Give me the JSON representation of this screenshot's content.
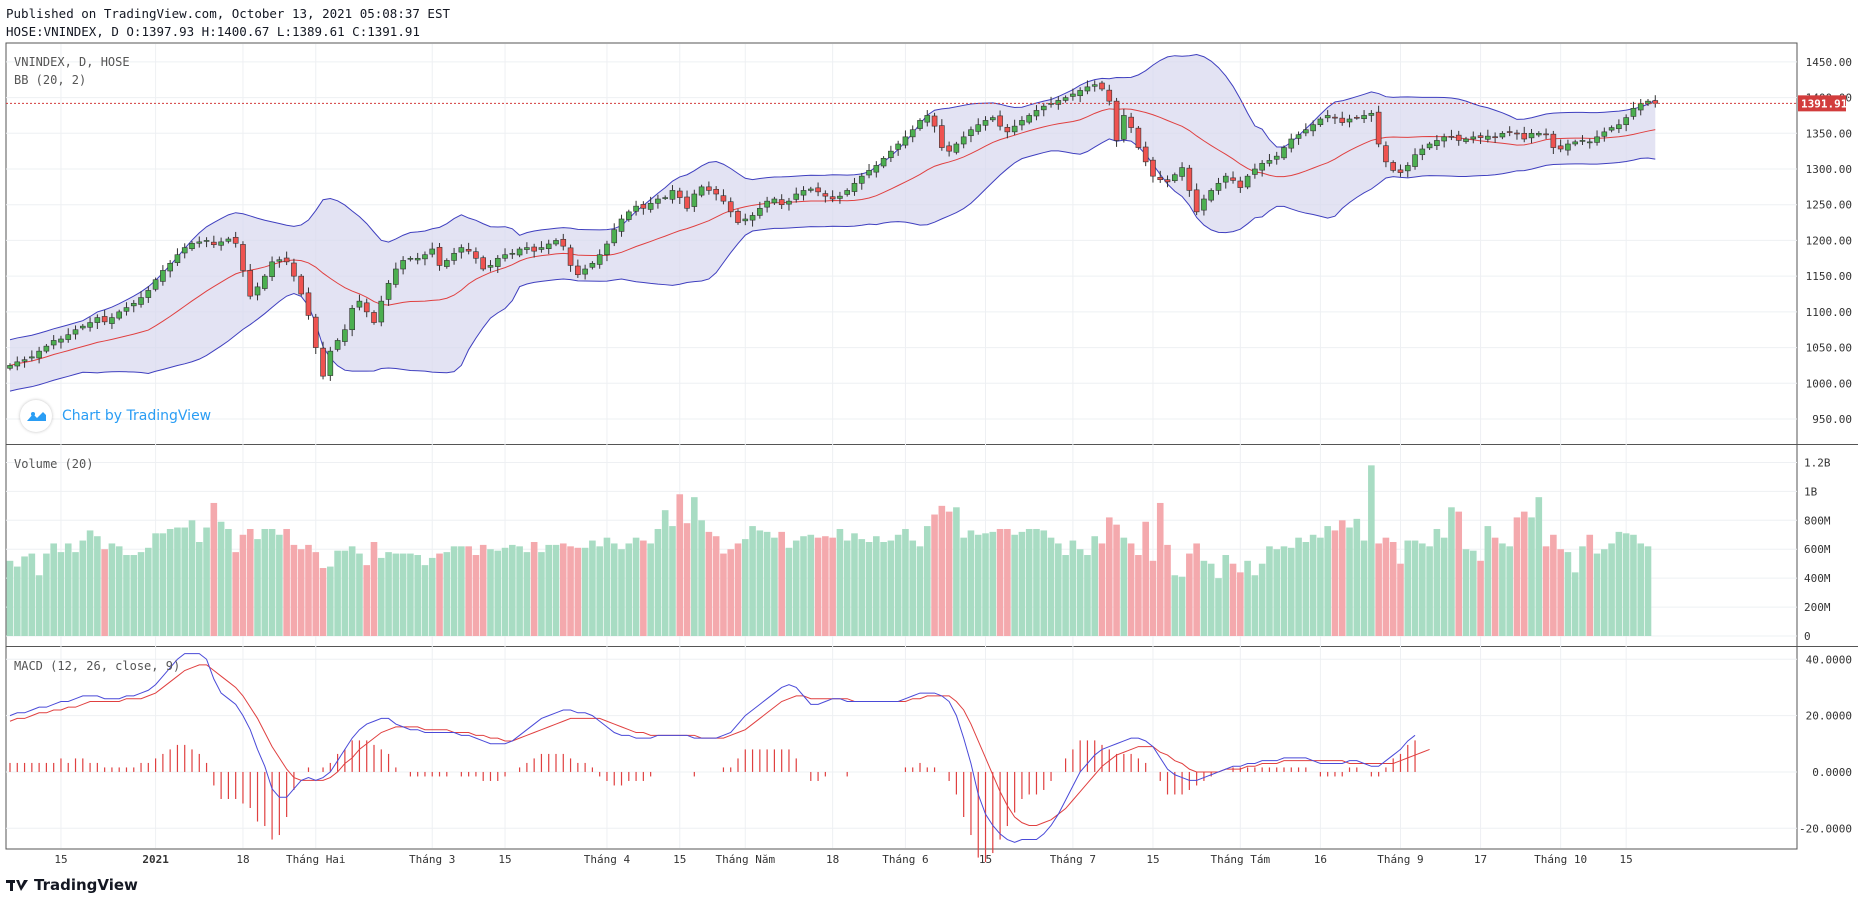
{
  "header": {
    "published": "Published on TradingView.com, October 13, 2021 05:08:37 EST",
    "ohlc": "HOSE:VNINDEX, D O:1397.93 H:1400.67 L:1389.61 C:1391.91"
  },
  "panes": {
    "price": {
      "title": "VNINDEX, D, HOSE",
      "indicator": "BB (20, 2)"
    },
    "volume": {
      "title": "Volume (20)"
    },
    "macd": {
      "title": "MACD (12, 26, close, 9)"
    }
  },
  "watermark": {
    "label": "Chart by TradingView"
  },
  "branding": {
    "label": "TradingView"
  },
  "colors": {
    "up": "#26a69a",
    "up_candle": "#4caf50",
    "down": "#ef5350",
    "bb_band": "#3f3fbf",
    "bb_fill": "#d7d7ee",
    "bb_basis": "#e04040",
    "macd_line": "#4a4ad8",
    "signal_line": "#e04040",
    "vol_up": "#a8dcc3",
    "vol_down": "#f4a9ad"
  },
  "chart_data": {
    "type": "candlestick",
    "last_price_label": "1391.91",
    "last_price": 1391.91,
    "price_axis": {
      "ticks": [
        "1450.00",
        "1400.00",
        "1350.00",
        "1300.00",
        "1250.00",
        "1200.00",
        "1150.00",
        "1100.00",
        "1050.00",
        "1000.00",
        "950.00"
      ],
      "ylim": [
        915,
        1475
      ]
    },
    "volume_axis": {
      "ticks": [
        "1.2B",
        "1B",
        "800M",
        "600M",
        "400M",
        "200M",
        "0"
      ],
      "ylim": [
        0,
        1.3
      ]
    },
    "macd_axis": {
      "ticks": [
        "40.0000",
        "20.0000",
        "0.0000",
        "-20.0000"
      ],
      "ylim": [
        -27,
        44
      ]
    },
    "x_axis": {
      "ticks": [
        {
          "label": "15",
          "idx": 7
        },
        {
          "label": "2021",
          "idx": 20
        },
        {
          "label": "18",
          "idx": 32
        },
        {
          "label": "Tháng Hai",
          "idx": 42
        },
        {
          "label": "Tháng 3",
          "idx": 58
        },
        {
          "label": "15",
          "idx": 68
        },
        {
          "label": "Tháng 4",
          "idx": 82
        },
        {
          "label": "15",
          "idx": 92
        },
        {
          "label": "Tháng Năm",
          "idx": 101
        },
        {
          "label": "18",
          "idx": 113
        },
        {
          "label": "Tháng 6",
          "idx": 123
        },
        {
          "label": "15",
          "idx": 134
        },
        {
          "label": "Tháng 7",
          "idx": 146
        },
        {
          "label": "15",
          "idx": 157
        },
        {
          "label": "Tháng Tám",
          "idx": 169
        },
        {
          "label": "16",
          "idx": 180
        },
        {
          "label": "Tháng 9",
          "idx": 191
        },
        {
          "label": "17",
          "idx": 202
        },
        {
          "label": "Tháng 10",
          "idx": 213
        },
        {
          "label": "15",
          "idx": 222
        }
      ]
    },
    "close": [
      1025,
      1030,
      1033,
      1037,
      1045,
      1052,
      1060,
      1062,
      1068,
      1075,
      1080,
      1085,
      1092,
      1086,
      1092,
      1100,
      1106,
      1112,
      1120,
      1130,
      1145,
      1158,
      1168,
      1180,
      1190,
      1196,
      1198,
      1200,
      1194,
      1198,
      1202,
      1196,
      1158,
      1122,
      1135,
      1150,
      1170,
      1173,
      1170,
      1150,
      1125,
      1095,
      1050,
      1010,
      1045,
      1060,
      1075,
      1105,
      1115,
      1100,
      1085,
      1115,
      1140,
      1160,
      1172,
      1175,
      1175,
      1180,
      1188,
      1165,
      1172,
      1182,
      1190,
      1185,
      1175,
      1160,
      1165,
      1175,
      1180,
      1182,
      1188,
      1190,
      1185,
      1190,
      1195,
      1200,
      1192,
      1165,
      1152,
      1160,
      1168,
      1180,
      1195,
      1215,
      1230,
      1240,
      1248,
      1245,
      1252,
      1258,
      1260,
      1270,
      1260,
      1245,
      1265,
      1275,
      1270,
      1265,
      1255,
      1240,
      1225,
      1230,
      1235,
      1245,
      1255,
      1258,
      1250,
      1255,
      1265,
      1270,
      1272,
      1268,
      1262,
      1258,
      1262,
      1270,
      1280,
      1290,
      1298,
      1305,
      1315,
      1325,
      1335,
      1345,
      1355,
      1368,
      1375,
      1360,
      1330,
      1325,
      1335,
      1345,
      1355,
      1362,
      1368,
      1372,
      1360,
      1352,
      1360,
      1368,
      1375,
      1382,
      1388,
      1392,
      1396,
      1400,
      1405,
      1410,
      1415,
      1418,
      1412,
      1395,
      1340,
      1375,
      1358,
      1330,
      1310,
      1290,
      1285,
      1282,
      1292,
      1302,
      1270,
      1240,
      1258,
      1270,
      1280,
      1290,
      1284,
      1274,
      1290,
      1300,
      1308,
      1312,
      1318,
      1330,
      1342,
      1348,
      1355,
      1362,
      1370,
      1375,
      1372,
      1365,
      1370,
      1372,
      1375,
      1378,
      1335,
      1310,
      1298,
      1295,
      1305,
      1320,
      1328,
      1335,
      1340,
      1345,
      1345,
      1340,
      1342,
      1345,
      1344,
      1346,
      1344,
      1350,
      1352,
      1350,
      1342,
      1350,
      1350,
      1348,
      1330,
      1328,
      1335,
      1338,
      1340,
      1338,
      1345,
      1352,
      1358,
      1362,
      1372,
      1385,
      1392,
      1395,
      1392
    ],
    "volume_bil": [
      0.52,
      0.48,
      0.55,
      0.57,
      0.42,
      0.57,
      0.64,
      0.58,
      0.64,
      0.58,
      0.66,
      0.73,
      0.69,
      0.6,
      0.64,
      0.62,
      0.56,
      0.56,
      0.58,
      0.61,
      0.71,
      0.71,
      0.74,
      0.75,
      0.75,
      0.8,
      0.65,
      0.75,
      0.92,
      0.79,
      0.74,
      0.58,
      0.7,
      0.74,
      0.67,
      0.74,
      0.74,
      0.7,
      0.74,
      0.63,
      0.6,
      0.63,
      0.58,
      0.47,
      0.48,
      0.59,
      0.59,
      0.62,
      0.57,
      0.49,
      0.65,
      0.54,
      0.58,
      0.57,
      0.57,
      0.57,
      0.56,
      0.49,
      0.54,
      0.57,
      0.58,
      0.62,
      0.62,
      0.62,
      0.56,
      0.63,
      0.6,
      0.59,
      0.61,
      0.63,
      0.62,
      0.58,
      0.65,
      0.58,
      0.63,
      0.63,
      0.64,
      0.62,
      0.61,
      0.61,
      0.66,
      0.62,
      0.68,
      0.64,
      0.6,
      0.64,
      0.68,
      0.66,
      0.64,
      0.74,
      0.87,
      0.76,
      0.98,
      0.78,
      0.96,
      0.8,
      0.72,
      0.69,
      0.57,
      0.6,
      0.64,
      0.67,
      0.76,
      0.73,
      0.72,
      0.68,
      0.72,
      0.61,
      0.66,
      0.69,
      0.7,
      0.68,
      0.69,
      0.68,
      0.74,
      0.66,
      0.71,
      0.67,
      0.65,
      0.69,
      0.65,
      0.66,
      0.7,
      0.74,
      0.66,
      0.62,
      0.76,
      0.84,
      0.9,
      0.86,
      0.89,
      0.68,
      0.73,
      0.7,
      0.71,
      0.72,
      0.74,
      0.74,
      0.7,
      0.72,
      0.74,
      0.74,
      0.73,
      0.68,
      0.64,
      0.56,
      0.66,
      0.6,
      0.56,
      0.69,
      0.64,
      0.82,
      0.77,
      0.68,
      0.64,
      0.56,
      0.79,
      0.52,
      0.92,
      0.63,
      0.42,
      0.41,
      0.57,
      0.64,
      0.52,
      0.5,
      0.4,
      0.56,
      0.5,
      0.44,
      0.52,
      0.42,
      0.5,
      0.62,
      0.6,
      0.62,
      0.61,
      0.68,
      0.65,
      0.7,
      0.68,
      0.76,
      0.73,
      0.8,
      0.75,
      0.81,
      0.66,
      1.18,
      0.64,
      0.68,
      0.65,
      0.5,
      0.66,
      0.66,
      0.64,
      0.62,
      0.74,
      0.68,
      0.89,
      0.86,
      0.6,
      0.59,
      0.52,
      0.76,
      0.68,
      0.64,
      0.62,
      0.82,
      0.86,
      0.82,
      0.96,
      0.62,
      0.7,
      0.6,
      0.58,
      0.44,
      0.62,
      0.7,
      0.57,
      0.6,
      0.64,
      0.72,
      0.71,
      0.7,
      0.64,
      0.62
    ],
    "macd": [
      20,
      21,
      21,
      22,
      23,
      23,
      24,
      25,
      25,
      26,
      27,
      27,
      27,
      26,
      26,
      26,
      27,
      27,
      28,
      29,
      31,
      34,
      37,
      40,
      42,
      42,
      42,
      40,
      33,
      28,
      26,
      24,
      20,
      15,
      8,
      2,
      -6,
      -9,
      -9,
      -6,
      -3,
      -2,
      -3,
      -2,
      0,
      4,
      8,
      12,
      15,
      17,
      18,
      19,
      19,
      17,
      16,
      15,
      15,
      14,
      14,
      14,
      14,
      14,
      13,
      13,
      12,
      11,
      10,
      10,
      10,
      11,
      13,
      15,
      17,
      19,
      20,
      21,
      22,
      22,
      21,
      21,
      20,
      18,
      16,
      14,
      13,
      13,
      12,
      12,
      12,
      13,
      13,
      13,
      13,
      13,
      12,
      12,
      12,
      12,
      13,
      14,
      17,
      20,
      22,
      24,
      26,
      28,
      30,
      31,
      30,
      27,
      24,
      24,
      25,
      26,
      26,
      25,
      25,
      25,
      25,
      25,
      25,
      25,
      25,
      26,
      27,
      28,
      28,
      28,
      27,
      25,
      20,
      12,
      3,
      -8,
      -15,
      -19,
      -22,
      -24,
      -25,
      -24,
      -24,
      -24,
      -22,
      -19,
      -15,
      -10,
      -5,
      0,
      3,
      6,
      8,
      9,
      10,
      11,
      12,
      12,
      11,
      9,
      5,
      1,
      -1,
      -2,
      -3,
      -3,
      -2,
      -1,
      0,
      1,
      2,
      2,
      3,
      3,
      4,
      4,
      4,
      5,
      5,
      5,
      5,
      4,
      3,
      3,
      3,
      3,
      4,
      4,
      3,
      2,
      2,
      4,
      6,
      8,
      11,
      13
    ],
    "signal": [
      18,
      19,
      19,
      20,
      21,
      21,
      22,
      22,
      23,
      23,
      24,
      25,
      25,
      25,
      25,
      25,
      26,
      26,
      26,
      27,
      28,
      30,
      32,
      34,
      36,
      37,
      38,
      38,
      36,
      34,
      32,
      30,
      27,
      23,
      19,
      14,
      9,
      5,
      1,
      -2,
      -3,
      -3,
      -3,
      -3,
      -2,
      0,
      3,
      5,
      8,
      10,
      12,
      14,
      15,
      16,
      16,
      16,
      16,
      15,
      15,
      15,
      15,
      14,
      14,
      14,
      13,
      13,
      12,
      12,
      11,
      11,
      12,
      13,
      14,
      15,
      16,
      17,
      18,
      19,
      19,
      19,
      19,
      19,
      18,
      17,
      16,
      15,
      14,
      14,
      13,
      13,
      13,
      13,
      13,
      13,
      13,
      12,
      12,
      12,
      12,
      13,
      14,
      15,
      17,
      19,
      21,
      23,
      25,
      26,
      27,
      27,
      26,
      26,
      26,
      26,
      26,
      26,
      25,
      25,
      25,
      25,
      25,
      25,
      25,
      25,
      26,
      26,
      27,
      27,
      27,
      27,
      25,
      22,
      17,
      11,
      5,
      -1,
      -7,
      -12,
      -16,
      -18,
      -19,
      -19,
      -18,
      -17,
      -15,
      -13,
      -10,
      -7,
      -4,
      -1,
      2,
      4,
      6,
      7,
      8,
      9,
      9,
      9,
      7,
      6,
      4,
      3,
      1,
      0,
      0,
      0,
      0,
      1,
      1,
      1,
      2,
      2,
      3,
      3,
      3,
      4,
      4,
      4,
      4,
      4,
      4,
      4,
      4,
      4,
      3,
      3,
      3,
      3,
      3,
      3,
      3,
      4,
      5,
      6,
      7,
      8
    ]
  }
}
